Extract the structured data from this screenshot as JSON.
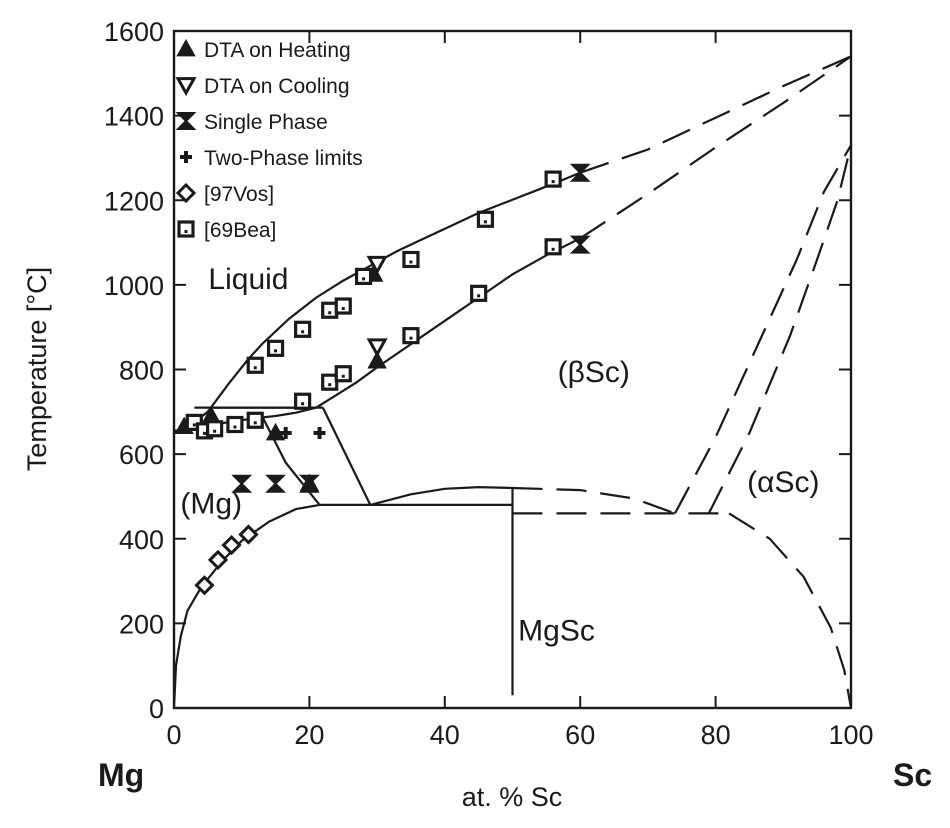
{
  "chart_data": {
    "type": "scatter",
    "xlabel": "at. % Sc",
    "ylabel": "Temperature [°C]",
    "xlim": [
      0,
      100
    ],
    "ylim": [
      0,
      1600
    ],
    "xticks": [
      0,
      20,
      40,
      60,
      80,
      100
    ],
    "yticks": [
      0,
      200,
      400,
      600,
      800,
      1000,
      1200,
      1400,
      1600
    ],
    "grid": false,
    "legend_position": "top-left",
    "end_labels": {
      "left": "Mg",
      "right": "Sc"
    },
    "region_labels": [
      {
        "text": "Liquid",
        "x": 11,
        "y": 990
      },
      {
        "text": "(βSc)",
        "x": 62,
        "y": 770
      },
      {
        "text": "(αSc)",
        "x": 90,
        "y": 510
      },
      {
        "text": "(Mg)",
        "x": 5.5,
        "y": 460
      },
      {
        "text": "MgSc",
        "x": 56.5,
        "y": 160
      }
    ],
    "series": [
      {
        "name": "DTA on Heating",
        "marker": "triangle-up",
        "x": [
          1.5,
          5.5,
          15,
          20,
          29.5,
          30
        ],
        "y": [
          665,
          690,
          650,
          530,
          1025,
          820
        ]
      },
      {
        "name": "DTA on Cooling",
        "marker": "triangle-down",
        "x": [
          30,
          30
        ],
        "y": [
          1050,
          855
        ]
      },
      {
        "name": "Single Phase",
        "marker": "bowtie",
        "x": [
          10,
          15,
          20,
          60,
          60
        ],
        "y": [
          530,
          530,
          530,
          1265,
          1095
        ]
      },
      {
        "name": "Two-Phase limits",
        "marker": "plus",
        "x": [
          16.5,
          21.5
        ],
        "y": [
          650,
          650
        ]
      },
      {
        "name": "[97Vos]",
        "marker": "diamond",
        "x": [
          4.5,
          6.5,
          8.5,
          11
        ],
        "y": [
          290,
          350,
          385,
          410
        ]
      },
      {
        "name": "[69Bea]",
        "marker": "square",
        "x": [
          3,
          4.5,
          6,
          9,
          12,
          12,
          15,
          19,
          19,
          23,
          23,
          25,
          25,
          28,
          35,
          35,
          45,
          46,
          56,
          56
        ],
        "y": [
          675,
          655,
          660,
          670,
          680,
          810,
          850,
          895,
          725,
          940,
          770,
          950,
          790,
          1020,
          1060,
          880,
          980,
          1155,
          1250,
          1090
        ]
      }
    ],
    "phase_boundaries": {
      "solid": [
        {
          "x": [
            0,
            2,
            5,
            8,
            11,
            13,
            17,
            21,
            25,
            29,
            33,
            37,
            41,
            45,
            49,
            53,
            56.5,
            60
          ],
          "y": [
            650,
            663,
            700,
            765,
            825,
            860,
            920,
            970,
            1010,
            1045,
            1080,
            1110,
            1140,
            1170,
            1195,
            1220,
            1242,
            1265
          ]
        },
        {
          "x": [
            0,
            3,
            6,
            9,
            12,
            15,
            18,
            21,
            24,
            27,
            30,
            35,
            40,
            45,
            50,
            55,
            60
          ],
          "y": [
            655,
            660,
            670,
            678,
            685,
            690,
            698,
            710,
            740,
            770,
            805,
            860,
            915,
            970,
            1025,
            1070,
            1110
          ]
        },
        {
          "x": [
            3,
            19
          ],
          "y": [
            710,
            710
          ]
        },
        {
          "x": [
            6,
            22
          ],
          "y": [
            710,
            710
          ]
        },
        {
          "x": [
            13,
            16.5,
            21.5
          ],
          "y": [
            690,
            580,
            480
          ]
        },
        {
          "x": [
            22,
            29
          ],
          "y": [
            710,
            480
          ]
        },
        {
          "x": [
            21.5,
            50
          ],
          "y": [
            480,
            480
          ]
        },
        {
          "x": [
            0,
            0.3,
            1,
            2,
            4,
            7,
            10,
            14,
            18,
            21.5
          ],
          "y": [
            0,
            100,
            170,
            230,
            285,
            345,
            395,
            440,
            470,
            480
          ]
        },
        {
          "x": [
            29,
            35,
            40,
            45,
            50
          ],
          "y": [
            480,
            505,
            518,
            522,
            520
          ]
        },
        {
          "x": [
            50,
            50
          ],
          "y": [
            30,
            520
          ]
        }
      ],
      "dashed": [
        {
          "x": [
            60,
            70,
            80,
            90,
            100
          ],
          "y": [
            1265,
            1320,
            1395,
            1470,
            1540
          ]
        },
        {
          "x": [
            60,
            70,
            80,
            90,
            100
          ],
          "y": [
            1110,
            1215,
            1325,
            1430,
            1540
          ]
        },
        {
          "x": [
            50,
            60,
            68,
            74
          ],
          "y": [
            520,
            515,
            495,
            460
          ]
        },
        {
          "x": [
            50,
            82
          ],
          "y": [
            460,
            460
          ]
        },
        {
          "x": [
            74,
            80,
            86,
            92,
            96,
            100
          ],
          "y": [
            460,
            640,
            850,
            1060,
            1220,
            1330
          ]
        },
        {
          "x": [
            79,
            85,
            91,
            95,
            98,
            100
          ],
          "y": [
            460,
            650,
            880,
            1060,
            1200,
            1330
          ]
        },
        {
          "x": [
            82,
            88,
            93,
            97,
            99,
            100
          ],
          "y": [
            460,
            400,
            310,
            190,
            90,
            0
          ]
        }
      ]
    }
  }
}
